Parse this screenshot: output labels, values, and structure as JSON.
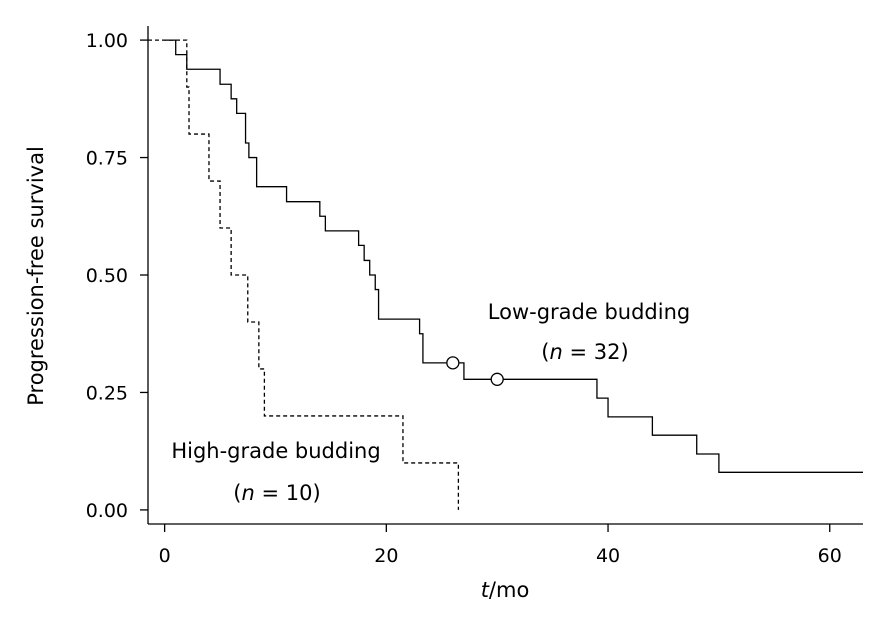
{
  "chart_data": {
    "type": "line",
    "xlabel": {
      "italic": "t",
      "rest": "/mo"
    },
    "ylabel": "Progression-free survival",
    "xlim": [
      -1.5,
      63
    ],
    "ylim": [
      -0.03,
      1.03
    ],
    "x_ticks": [
      0,
      20,
      40,
      60
    ],
    "x_tick_labels": [
      "0",
      "20",
      "40",
      "60"
    ],
    "y_ticks": [
      0.0,
      0.25,
      0.5,
      0.75,
      1.0
    ],
    "y_tick_labels": [
      "0.00",
      "0.25",
      "0.50",
      "0.75",
      "1.00"
    ],
    "series": [
      {
        "name": "Low-grade budding",
        "style": "solid",
        "color": "#000000",
        "steps": [
          [
            0,
            1.0
          ],
          [
            1,
            0.969
          ],
          [
            2,
            0.938
          ],
          [
            5,
            0.906
          ],
          [
            6,
            0.875
          ],
          [
            6.5,
            0.844
          ],
          [
            7.3,
            0.781
          ],
          [
            7.6,
            0.75
          ],
          [
            8.3,
            0.688
          ],
          [
            11,
            0.656
          ],
          [
            14,
            0.625
          ],
          [
            14.5,
            0.594
          ],
          [
            17.5,
            0.563
          ],
          [
            18,
            0.531
          ],
          [
            18.5,
            0.5
          ],
          [
            19,
            0.469
          ],
          [
            19.3,
            0.406
          ],
          [
            23,
            0.375
          ],
          [
            23.3,
            0.313
          ],
          [
            27,
            0.278
          ],
          [
            39,
            0.238
          ],
          [
            40,
            0.198
          ],
          [
            44,
            0.159
          ],
          [
            48,
            0.119
          ],
          [
            50,
            0.08
          ]
        ],
        "end_x": 63,
        "censored": [
          [
            26,
            0.313
          ],
          [
            30,
            0.278
          ]
        ]
      },
      {
        "name": "High-grade budding",
        "style": "dashed",
        "color": "#000000",
        "steps": [
          [
            -1.5,
            1.0
          ],
          [
            2,
            0.9
          ],
          [
            2.2,
            0.8
          ],
          [
            4,
            0.7
          ],
          [
            5,
            0.6
          ],
          [
            6,
            0.5
          ],
          [
            7.5,
            0.4
          ],
          [
            8.5,
            0.3
          ],
          [
            9,
            0.2
          ],
          [
            21.5,
            0.1
          ]
        ],
        "end_x": 26.5,
        "end_y": 0.0
      }
    ],
    "annotations": [
      {
        "label": "Low-grade budding",
        "n_var": "n",
        "n_eq": " = 32"
      },
      {
        "label": "High-grade budding",
        "n_var": "n",
        "n_eq": " = 10"
      }
    ]
  }
}
